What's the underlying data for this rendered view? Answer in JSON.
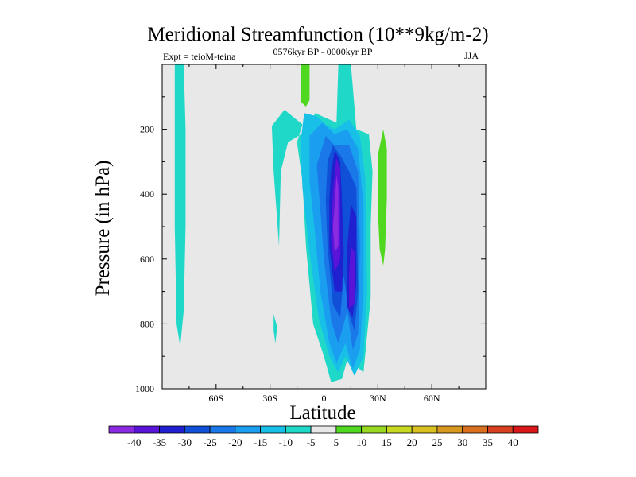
{
  "chart_data": {
    "type": "heatmap",
    "title": "Meridional Streamfunction (10**9kg/m-2)",
    "left_annotation": "Expt = teioM-teina",
    "center_annotation": "0576kyr BP - 0000kyr BP",
    "right_annotation": "JJA",
    "xlabel": "Latitude",
    "ylabel": "Pressure (in hPa)",
    "xlim": [
      -90,
      90
    ],
    "ylim": [
      1000,
      0
    ],
    "x_ticks": [
      -60,
      -30,
      0,
      30,
      60
    ],
    "x_tick_labels": [
      "60S",
      "30S",
      "0",
      "30N",
      "60N"
    ],
    "y_ticks": [
      200,
      400,
      600,
      800,
      1000
    ],
    "y_tick_labels": [
      "200",
      "400",
      "600",
      "800",
      "1000"
    ],
    "colorbar": {
      "labels": [
        "-40",
        "-35",
        "-30",
        "-25",
        "-20",
        "-15",
        "-10",
        "-5",
        "5",
        "10",
        "15",
        "20",
        "25",
        "30",
        "35",
        "40"
      ],
      "colors": [
        "#8a2be2",
        "#5a14d8",
        "#2020d0",
        "#1050d8",
        "#1a78e8",
        "#1a9ef0",
        "#18c0e8",
        "#20d8c8",
        "#e8e8e8",
        "#50d820",
        "#98d820",
        "#c8d820",
        "#d8c020",
        "#d89820",
        "#d87020",
        "#d84020",
        "#d81818"
      ]
    },
    "contours": [
      {
        "level": "-5",
        "color": "#20d8c8",
        "polygons": [
          [
            [
              -83,
              0
            ],
            [
              -78,
              0
            ],
            [
              -77,
              200
            ],
            [
              -77,
              500
            ],
            [
              -78,
              760
            ],
            [
              -80,
              870
            ],
            [
              -82,
              800
            ],
            [
              -83,
              500
            ]
          ],
          [
            [
              -28,
              770
            ],
            [
              -26,
              810
            ],
            [
              -27,
              860
            ],
            [
              -28,
              820
            ]
          ],
          [
            [
              -29,
              190
            ],
            [
              -22,
              140
            ],
            [
              -12,
              185
            ],
            [
              -15,
              240
            ],
            [
              -12,
              360
            ],
            [
              -10,
              560
            ],
            [
              -6,
              800
            ],
            [
              0,
              900
            ],
            [
              4,
              980
            ],
            [
              10,
              970
            ],
            [
              14,
              890
            ],
            [
              18,
              930
            ],
            [
              22,
              950
            ],
            [
              26,
              720
            ],
            [
              26,
              500
            ],
            [
              27,
              330
            ],
            [
              25,
              215
            ],
            [
              18,
              200
            ],
            [
              15,
              0
            ],
            [
              8,
              0
            ],
            [
              7,
              180
            ],
            [
              -5,
              150
            ],
            [
              -8,
              200
            ],
            [
              -20,
              240
            ],
            [
              -24,
              330
            ],
            [
              -25,
              560
            ],
            [
              -28,
              330
            ]
          ]
        ]
      },
      {
        "level": "-10",
        "color": "#18c0e8",
        "polygons": [
          [
            [
              -11,
              150
            ],
            [
              -4,
              160
            ],
            [
              2,
              190
            ],
            [
              6,
              200
            ],
            [
              14,
              170
            ],
            [
              20,
              220
            ],
            [
              23,
              350
            ],
            [
              24,
              700
            ],
            [
              22,
              900
            ],
            [
              17,
              960
            ],
            [
              12,
              900
            ],
            [
              8,
              950
            ],
            [
              3,
              900
            ],
            [
              -3,
              780
            ],
            [
              -8,
              580
            ],
            [
              -12,
              380
            ],
            [
              -13,
              240
            ]
          ]
        ]
      },
      {
        "level": "-15",
        "color": "#1a9ef0",
        "polygons": [
          [
            [
              -8,
              220
            ],
            [
              -1,
              180
            ],
            [
              6,
              215
            ],
            [
              13,
              200
            ],
            [
              19,
              260
            ],
            [
              22,
              430
            ],
            [
              22,
              700
            ],
            [
              20,
              880
            ],
            [
              16,
              940
            ],
            [
              12,
              860
            ],
            [
              7,
              920
            ],
            [
              3,
              860
            ],
            [
              -2,
              700
            ],
            [
              -5,
              520
            ],
            [
              -8,
              360
            ]
          ]
        ]
      },
      {
        "level": "-20",
        "color": "#1a78e8",
        "polygons": [
          [
            [
              -4,
              310
            ],
            [
              1,
              220
            ],
            [
              6,
              250
            ],
            [
              14,
              250
            ],
            [
              19,
              330
            ],
            [
              20,
              560
            ],
            [
              19,
              830
            ],
            [
              16,
              880
            ],
            [
              13,
              760
            ],
            [
              8,
              860
            ],
            [
              4,
              790
            ],
            [
              0,
              600
            ],
            [
              -2,
              450
            ]
          ]
        ]
      },
      {
        "level": "-25",
        "color": "#1050d8",
        "polygons": [
          [
            [
              2,
              300
            ],
            [
              5,
              250
            ],
            [
              9,
              280
            ],
            [
              14,
              330
            ],
            [
              18,
              380
            ],
            [
              19,
              700
            ],
            [
              17,
              820
            ],
            [
              14,
              770
            ],
            [
              11,
              650
            ],
            [
              9,
              780
            ],
            [
              5,
              740
            ],
            [
              2,
              560
            ],
            [
              1,
              420
            ]
          ]
        ]
      },
      {
        "level": "-30",
        "color": "#2020d0",
        "polygons": [
          [
            [
              4,
              330
            ],
            [
              6,
              265
            ],
            [
              9,
              300
            ],
            [
              10,
              420
            ],
            [
              11,
              580
            ],
            [
              10,
              700
            ],
            [
              6,
              700
            ],
            [
              3,
              560
            ],
            [
              3,
              420
            ]
          ],
          [
            [
              15,
              430
            ],
            [
              18,
              470
            ],
            [
              18,
              680
            ],
            [
              16,
              780
            ],
            [
              13,
              750
            ],
            [
              13,
              560
            ]
          ]
        ]
      },
      {
        "level": "-35",
        "color": "#5a14d8",
        "polygons": [
          [
            [
              5,
              390
            ],
            [
              7,
              290
            ],
            [
              9,
              320
            ],
            [
              9,
              480
            ],
            [
              9,
              600
            ],
            [
              6,
              640
            ],
            [
              4,
              540
            ]
          ],
          [
            [
              15,
              560
            ],
            [
              17,
              580
            ],
            [
              17,
              740
            ],
            [
              14,
              750
            ],
            [
              14,
              640
            ]
          ]
        ]
      },
      {
        "level": "-40",
        "color": "#8a2be2",
        "polygons": [
          [
            [
              6,
              430
            ],
            [
              7,
              340
            ],
            [
              8,
              380
            ],
            [
              8,
              480
            ],
            [
              8,
              560
            ],
            [
              6,
              580
            ],
            [
              5,
              500
            ]
          ]
        ]
      },
      {
        "level": "5",
        "color": "#50d820",
        "polygons": [
          [
            [
              -13,
              0
            ],
            [
              -8,
              0
            ],
            [
              -8,
              110
            ],
            [
              -10,
              130
            ],
            [
              -13,
              115
            ]
          ],
          [
            [
              30,
              280
            ],
            [
              33,
              200
            ],
            [
              35,
              260
            ],
            [
              35,
              410
            ],
            [
              34,
              570
            ],
            [
              33,
              620
            ],
            [
              31,
              570
            ],
            [
              30,
              450
            ]
          ]
        ]
      }
    ]
  }
}
